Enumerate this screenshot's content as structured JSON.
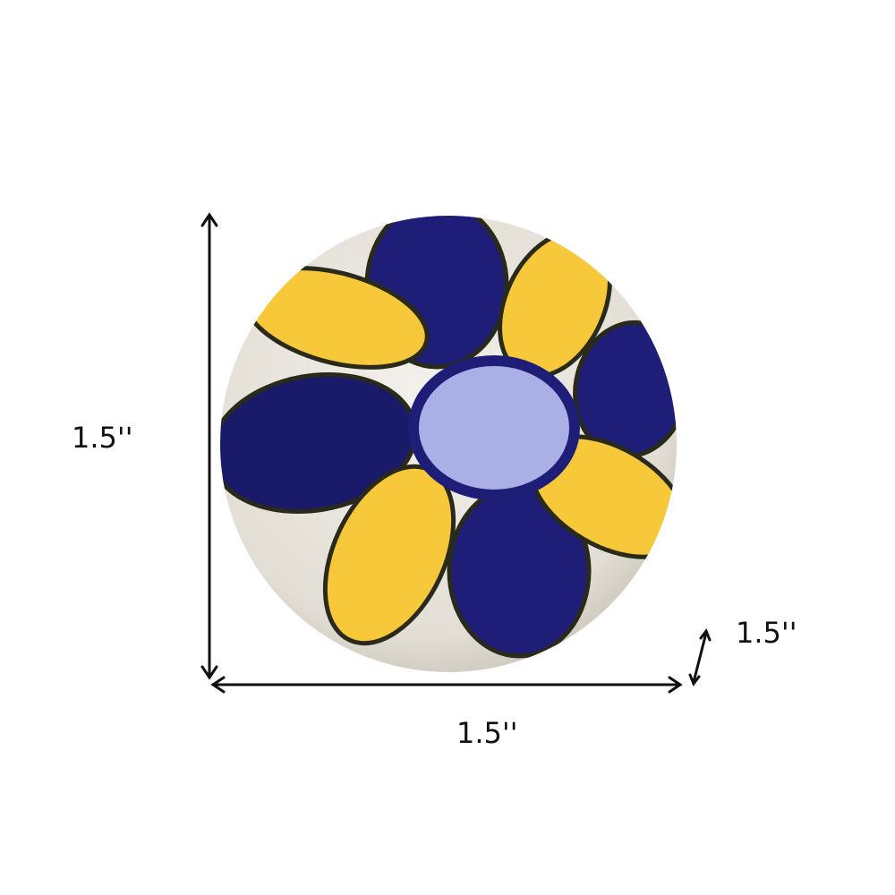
{
  "dimensions": {
    "height_label": "1.5''",
    "width_label": "1.5''",
    "depth_label": "1.5''"
  },
  "colors": {
    "ball": "#e9e6df",
    "petal_blue": "#1e1e78",
    "petal_yellow": "#f6c83a",
    "center": "#aab0e6",
    "outline": "#2a2a1a",
    "arrow": "#111111"
  }
}
